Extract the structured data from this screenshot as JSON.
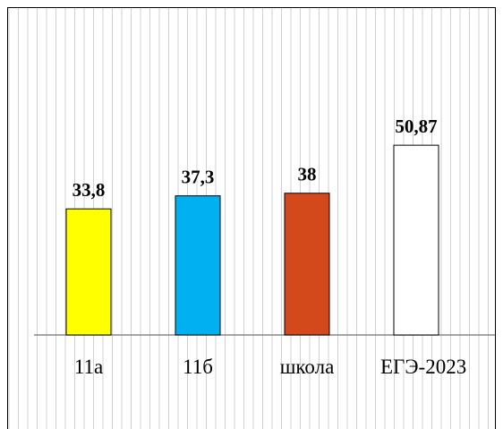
{
  "chart_data": {
    "type": "bar",
    "categories": [
      "11а",
      "11б",
      "школа",
      "ЕГЭ-2023"
    ],
    "values": [
      33.8,
      37.3,
      38,
      50.87
    ],
    "value_labels": [
      "33,8",
      "37,3",
      "38",
      "50,87"
    ],
    "colors": [
      "#ffff00",
      "#00b0f0",
      "#d4491b",
      "#ffffff"
    ],
    "ylim": [
      0,
      85
    ]
  }
}
